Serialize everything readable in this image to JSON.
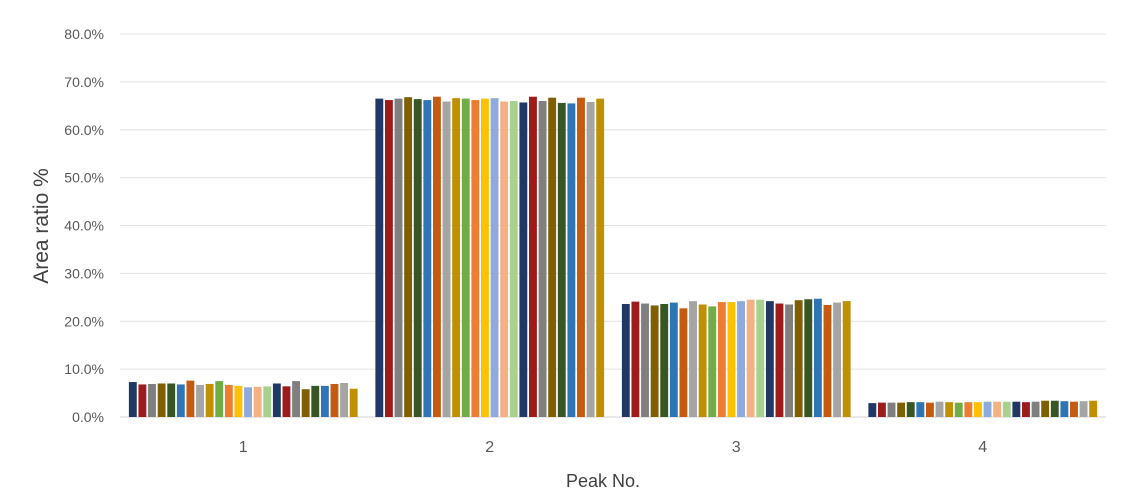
{
  "chart_data": {
    "type": "bar",
    "title": "",
    "xlabel": "Peak No.",
    "ylabel": "Area ratio %",
    "ylim": [
      0,
      80
    ],
    "y_ticks": [
      "0.0%",
      "10.0%",
      "20.0%",
      "30.0%",
      "40.0%",
      "50.0%",
      "60.0%",
      "70.0%",
      "80.0%"
    ],
    "grid": true,
    "legend": "none",
    "categories": [
      "1",
      "2",
      "3",
      "4"
    ],
    "colors": [
      "#1f3864",
      "#9e1b1b",
      "#7f7f7f",
      "#7f6000",
      "#375623",
      "#2e75b6",
      "#c55a11",
      "#a5a5a5",
      "#bf9000",
      "#70ad47",
      "#ed7d31",
      "#ffc000",
      "#8faadc",
      "#f4b183",
      "#a9d18e"
    ],
    "series_values": [
      [
        7.3,
        66.5,
        23.6,
        2.9
      ],
      [
        6.8,
        66.2,
        24.1,
        3.0
      ],
      [
        6.9,
        66.5,
        23.7,
        3.0
      ],
      [
        7.0,
        66.8,
        23.3,
        3.0
      ],
      [
        7.0,
        66.4,
        23.6,
        3.1
      ],
      [
        6.8,
        66.2,
        23.9,
        3.1
      ],
      [
        7.6,
        66.9,
        22.7,
        3.0
      ],
      [
        6.7,
        65.9,
        24.2,
        3.2
      ],
      [
        6.9,
        66.6,
        23.5,
        3.1
      ],
      [
        7.5,
        66.5,
        23.1,
        3.0
      ],
      [
        6.7,
        66.2,
        24.0,
        3.1
      ],
      [
        6.5,
        66.5,
        24.0,
        3.1
      ],
      [
        6.2,
        66.6,
        24.2,
        3.2
      ],
      [
        6.3,
        65.9,
        24.5,
        3.2
      ],
      [
        6.4,
        66.0,
        24.5,
        3.2
      ],
      [
        7.0,
        65.7,
        24.2,
        3.2
      ],
      [
        6.4,
        66.9,
        23.7,
        3.1
      ],
      [
        7.5,
        66.0,
        23.5,
        3.2
      ],
      [
        5.8,
        66.7,
        24.4,
        3.4
      ],
      [
        6.5,
        65.6,
        24.6,
        3.4
      ],
      [
        6.5,
        65.5,
        24.7,
        3.3
      ],
      [
        6.9,
        66.7,
        23.4,
        3.2
      ],
      [
        7.1,
        65.8,
        23.9,
        3.3
      ],
      [
        5.9,
        66.5,
        24.2,
        3.4
      ]
    ]
  }
}
